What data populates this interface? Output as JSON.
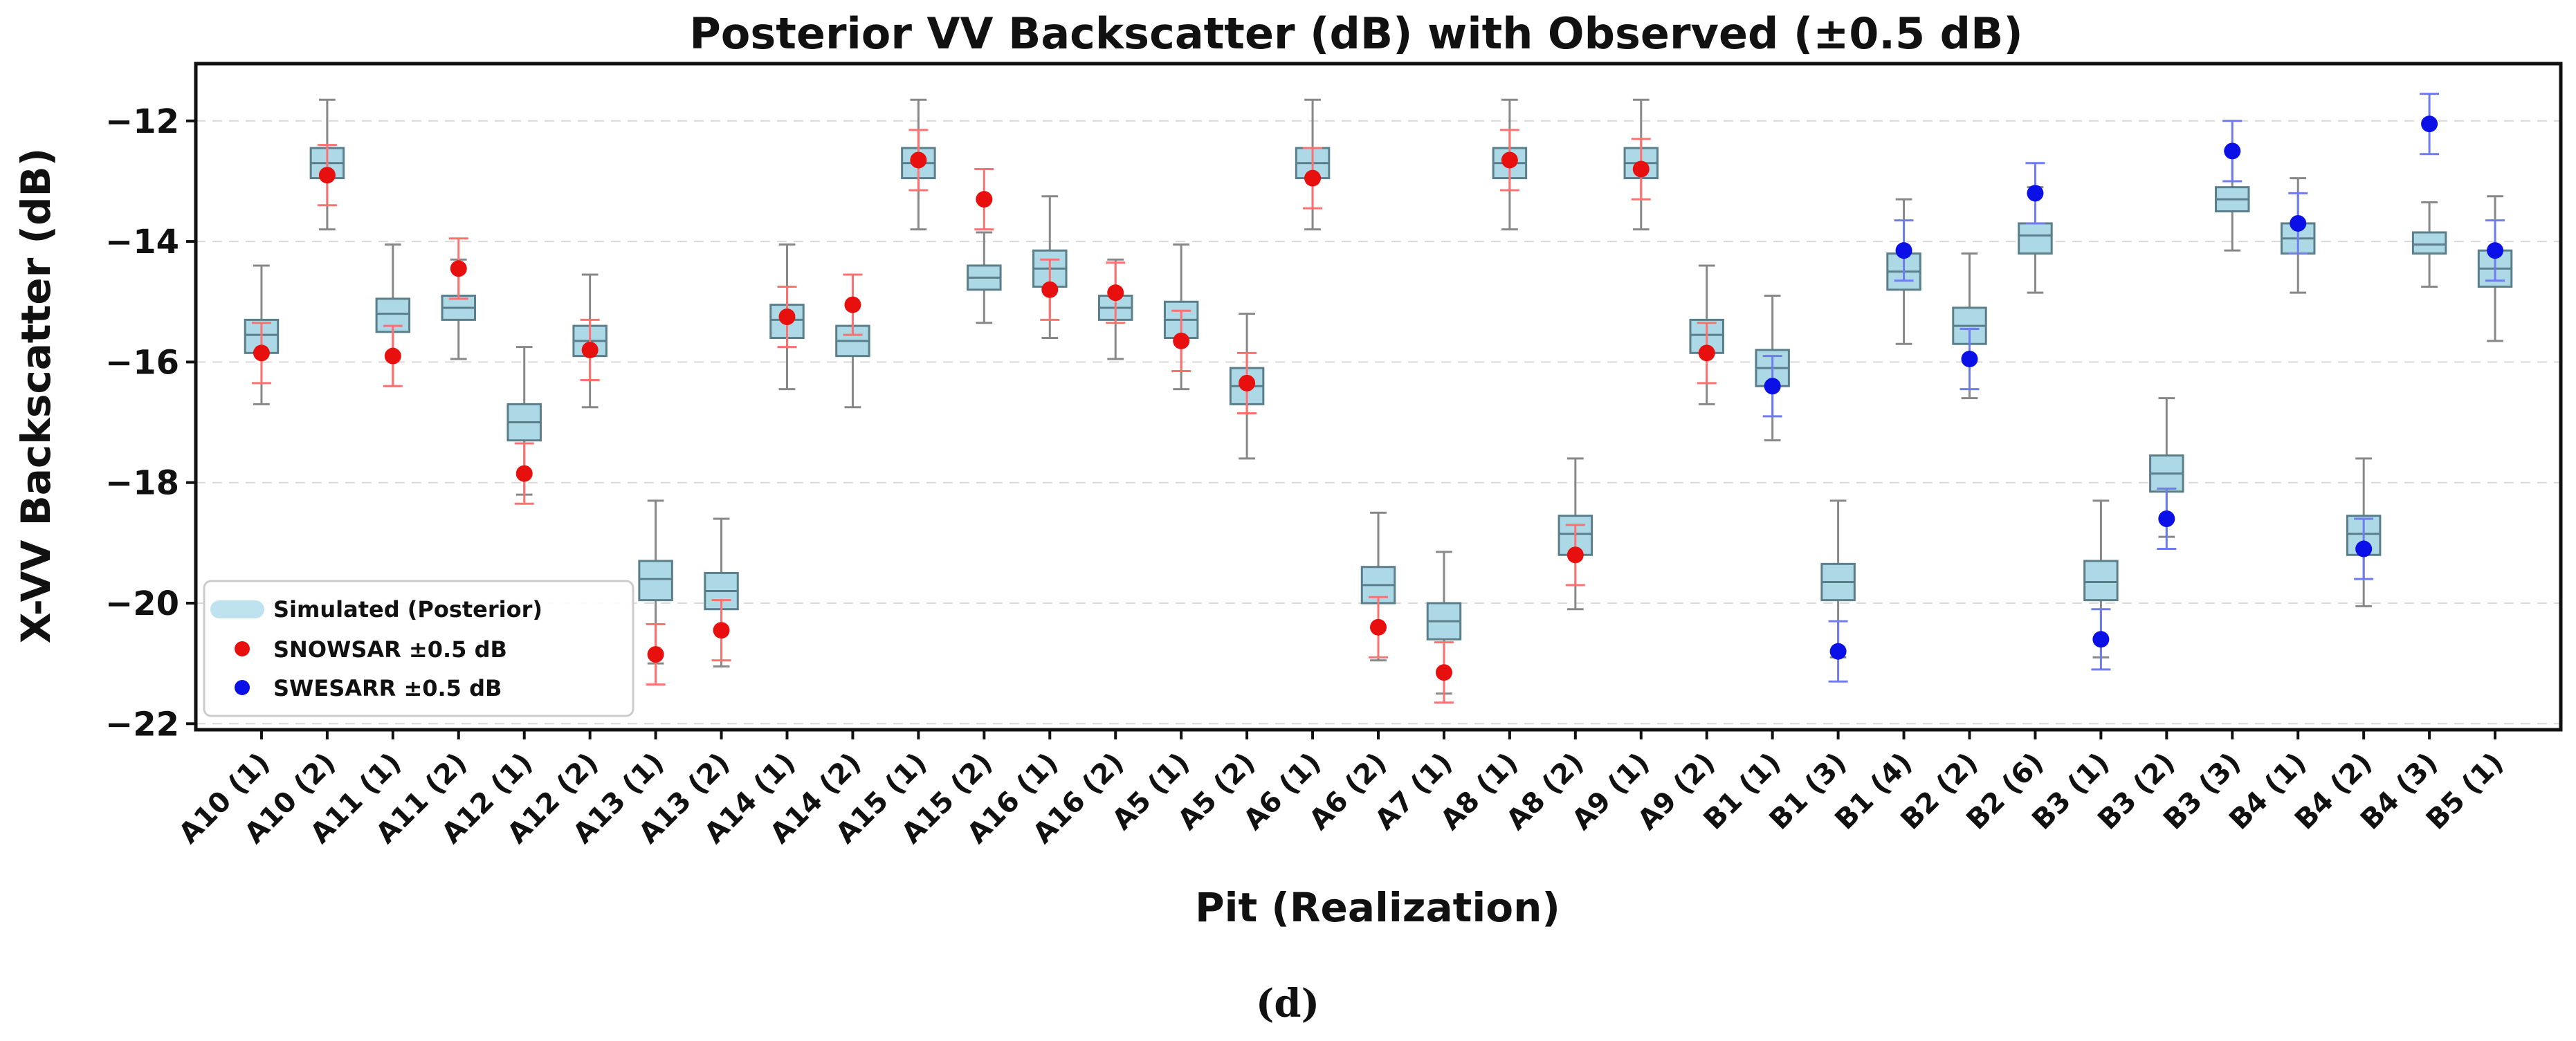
{
  "chart_data": {
    "type": "box",
    "title": "Posterior VV Backscatter (dB) with Observed (±0.5 dB)",
    "xlabel": "Pit (Realization)",
    "ylabel": "X-VV Backscatter (dB)",
    "caption": "(d)",
    "ylim": [
      -22.1,
      -11.05
    ],
    "yticks": [
      -22,
      -20,
      -18,
      -16,
      -14,
      -12
    ],
    "ytick_labels": [
      "−22",
      "−20",
      "−18",
      "−16",
      "−14",
      "−12"
    ],
    "grid": "horizontal dashed",
    "legend": {
      "position": "lower-left",
      "entries": [
        {
          "label": "Simulated (Posterior)",
          "color": "#bfe3ee",
          "kind": "band"
        },
        {
          "label": "SNOWSAR ±0.5 dB",
          "color": "#e8100f",
          "kind": "dot"
        },
        {
          "label": "SWESARR ±0.5 dB",
          "color": "#0a10e6",
          "kind": "dot"
        }
      ]
    },
    "colors": {
      "box_fill": "#add8e6",
      "box_edge": "#5a7f8a",
      "whisker": "#888888",
      "snowsar": "#e8100f",
      "snowsar_err": "#ff7070",
      "swesarr": "#0a10e6",
      "swesarr_err": "#6f7cf0"
    },
    "categories": [
      "A10 (1)",
      "A10 (2)",
      "A11 (1)",
      "A11 (2)",
      "A12 (1)",
      "A12 (2)",
      "A13 (1)",
      "A13 (2)",
      "A14 (1)",
      "A14 (2)",
      "A15 (1)",
      "A15 (2)",
      "A16 (1)",
      "A16 (2)",
      "A5 (1)",
      "A5 (2)",
      "A6 (1)",
      "A6 (2)",
      "A7 (1)",
      "A8 (1)",
      "A8 (2)",
      "A9 (1)",
      "A9 (2)",
      "B1 (1)",
      "B1 (3)",
      "B1 (4)",
      "B2 (2)",
      "B2 (6)",
      "B3 (1)",
      "B3 (2)",
      "B3 (3)",
      "B4 (1)",
      "B4 (2)",
      "B4 (3)",
      "B5 (1)"
    ],
    "boxes": [
      {
        "whislo": -16.7,
        "q1": -15.85,
        "med": -15.55,
        "q3": -15.3,
        "whishi": -14.4
      },
      {
        "whislo": -13.8,
        "q1": -12.95,
        "med": -12.7,
        "q3": -12.45,
        "whishi": -11.65
      },
      {
        "whislo": -16.4,
        "q1": -15.5,
        "med": -15.2,
        "q3": -14.95,
        "whishi": -14.05
      },
      {
        "whislo": -15.95,
        "q1": -15.3,
        "med": -15.1,
        "q3": -14.9,
        "whishi": -14.3
      },
      {
        "whislo": -18.2,
        "q1": -17.3,
        "med": -17.0,
        "q3": -16.7,
        "whishi": -15.75
      },
      {
        "whislo": -16.75,
        "q1": -15.9,
        "med": -15.65,
        "q3": -15.4,
        "whishi": -14.55
      },
      {
        "whislo": -21.0,
        "q1": -19.95,
        "med": -19.6,
        "q3": -19.3,
        "whishi": -18.3
      },
      {
        "whislo": -21.05,
        "q1": -20.1,
        "med": -19.8,
        "q3": -19.5,
        "whishi": -18.6
      },
      {
        "whislo": -16.45,
        "q1": -15.6,
        "med": -15.3,
        "q3": -15.05,
        "whishi": -14.05
      },
      {
        "whislo": -16.75,
        "q1": -15.9,
        "med": -15.65,
        "q3": -15.4,
        "whishi": -14.55
      },
      {
        "whislo": -13.8,
        "q1": -12.95,
        "med": -12.7,
        "q3": -12.45,
        "whishi": -11.65
      },
      {
        "whislo": -15.35,
        "q1": -14.8,
        "med": -14.6,
        "q3": -14.4,
        "whishi": -13.85
      },
      {
        "whislo": -15.6,
        "q1": -14.75,
        "med": -14.45,
        "q3": -14.15,
        "whishi": -13.25
      },
      {
        "whislo": -15.95,
        "q1": -15.3,
        "med": -15.1,
        "q3": -14.9,
        "whishi": -14.3
      },
      {
        "whislo": -16.45,
        "q1": -15.6,
        "med": -15.3,
        "q3": -15.0,
        "whishi": -14.05
      },
      {
        "whislo": -17.6,
        "q1": -16.7,
        "med": -16.4,
        "q3": -16.1,
        "whishi": -15.2
      },
      {
        "whislo": -13.8,
        "q1": -12.95,
        "med": -12.7,
        "q3": -12.45,
        "whishi": -11.65
      },
      {
        "whislo": -20.95,
        "q1": -20.0,
        "med": -19.7,
        "q3": -19.4,
        "whishi": -18.5
      },
      {
        "whislo": -21.5,
        "q1": -20.6,
        "med": -20.3,
        "q3": -20.0,
        "whishi": -19.15
      },
      {
        "whislo": -13.8,
        "q1": -12.95,
        "med": -12.7,
        "q3": -12.45,
        "whishi": -11.65
      },
      {
        "whislo": -20.1,
        "q1": -19.2,
        "med": -18.85,
        "q3": -18.55,
        "whishi": -17.6
      },
      {
        "whislo": -13.8,
        "q1": -12.95,
        "med": -12.7,
        "q3": -12.45,
        "whishi": -11.65
      },
      {
        "whislo": -16.7,
        "q1": -15.85,
        "med": -15.55,
        "q3": -15.3,
        "whishi": -14.4
      },
      {
        "whislo": -17.3,
        "q1": -16.4,
        "med": -16.1,
        "q3": -15.8,
        "whishi": -14.9
      },
      {
        "whislo": -20.9,
        "q1": -19.95,
        "med": -19.65,
        "q3": -19.35,
        "whishi": -18.3
      },
      {
        "whislo": -15.7,
        "q1": -14.8,
        "med": -14.5,
        "q3": -14.2,
        "whishi": -13.3
      },
      {
        "whislo": -16.6,
        "q1": -15.7,
        "med": -15.4,
        "q3": -15.1,
        "whishi": -14.2
      },
      {
        "whislo": -14.85,
        "q1": -14.2,
        "med": -13.9,
        "q3": -13.7,
        "whishi": -13.1
      },
      {
        "whislo": -20.9,
        "q1": -19.95,
        "med": -19.65,
        "q3": -19.3,
        "whishi": -18.3
      },
      {
        "whislo": -18.9,
        "q1": -18.15,
        "med": -17.85,
        "q3": -17.55,
        "whishi": -16.6
      },
      {
        "whislo": -14.15,
        "q1": -13.5,
        "med": -13.3,
        "q3": -13.1,
        "whishi": -12.5
      },
      {
        "whislo": -14.85,
        "q1": -14.2,
        "med": -13.95,
        "q3": -13.7,
        "whishi": -12.95
      },
      {
        "whislo": -20.05,
        "q1": -19.2,
        "med": -18.85,
        "q3": -18.55,
        "whishi": -17.6
      },
      {
        "whislo": -14.75,
        "q1": -14.2,
        "med": -14.05,
        "q3": -13.85,
        "whishi": -13.35
      },
      {
        "whislo": -15.65,
        "q1": -14.75,
        "med": -14.45,
        "q3": -14.15,
        "whishi": -13.25
      }
    ],
    "observed": [
      {
        "value": -15.85,
        "sensor": "SNOWSAR"
      },
      {
        "value": -12.9,
        "sensor": "SNOWSAR"
      },
      {
        "value": -15.9,
        "sensor": "SNOWSAR"
      },
      {
        "value": -14.45,
        "sensor": "SNOWSAR"
      },
      {
        "value": -17.85,
        "sensor": "SNOWSAR"
      },
      {
        "value": -15.8,
        "sensor": "SNOWSAR"
      },
      {
        "value": -20.85,
        "sensor": "SNOWSAR"
      },
      {
        "value": -20.45,
        "sensor": "SNOWSAR"
      },
      {
        "value": -15.25,
        "sensor": "SNOWSAR"
      },
      {
        "value": -15.05,
        "sensor": "SNOWSAR"
      },
      {
        "value": -12.65,
        "sensor": "SNOWSAR"
      },
      {
        "value": -13.3,
        "sensor": "SNOWSAR"
      },
      {
        "value": -14.8,
        "sensor": "SNOWSAR"
      },
      {
        "value": -14.85,
        "sensor": "SNOWSAR"
      },
      {
        "value": -15.65,
        "sensor": "SNOWSAR"
      },
      {
        "value": -16.35,
        "sensor": "SNOWSAR"
      },
      {
        "value": -12.95,
        "sensor": "SNOWSAR"
      },
      {
        "value": -20.4,
        "sensor": "SNOWSAR"
      },
      {
        "value": -21.15,
        "sensor": "SNOWSAR"
      },
      {
        "value": -12.65,
        "sensor": "SNOWSAR"
      },
      {
        "value": -19.2,
        "sensor": "SNOWSAR"
      },
      {
        "value": -12.8,
        "sensor": "SNOWSAR"
      },
      {
        "value": -15.85,
        "sensor": "SNOWSAR"
      },
      {
        "value": -16.4,
        "sensor": "SWESARR"
      },
      {
        "value": -20.8,
        "sensor": "SWESARR"
      },
      {
        "value": -14.15,
        "sensor": "SWESARR"
      },
      {
        "value": -15.95,
        "sensor": "SWESARR"
      },
      {
        "value": -13.2,
        "sensor": "SWESARR"
      },
      {
        "value": -20.6,
        "sensor": "SWESARR"
      },
      {
        "value": -18.6,
        "sensor": "SWESARR"
      },
      {
        "value": -12.5,
        "sensor": "SWESARR"
      },
      {
        "value": -13.7,
        "sensor": "SWESARR"
      },
      {
        "value": -19.1,
        "sensor": "SWESARR"
      },
      {
        "value": -12.05,
        "sensor": "SWESARR"
      },
      {
        "value": -14.15,
        "sensor": "SWESARR"
      }
    ],
    "observed_error": 0.5
  }
}
